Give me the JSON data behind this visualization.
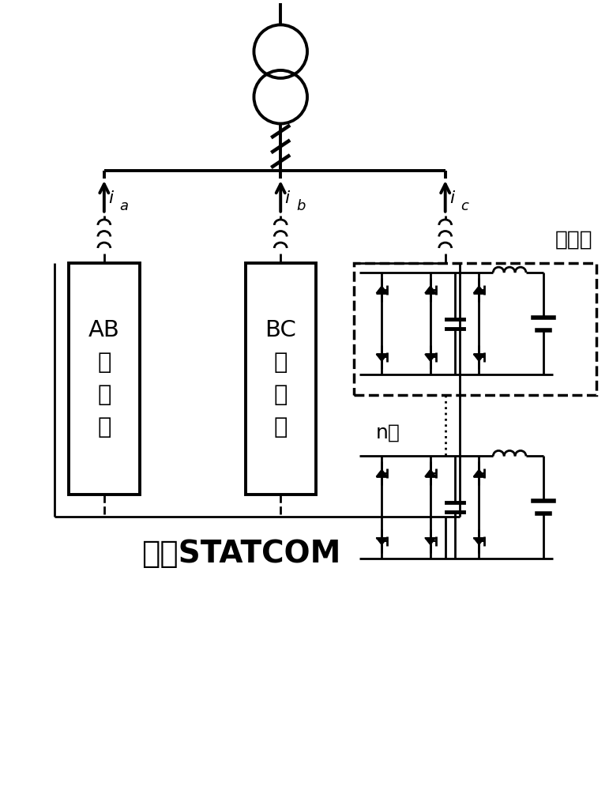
{
  "title": "储能STATCOM",
  "submodule_label": "子模块",
  "n_label": "n个",
  "phase_a_label": "AB\n相\n链\n节",
  "phase_b_label": "BC\n相\n链\n节",
  "bg_color": "#ffffff",
  "lw": 2.0,
  "lw_thick": 2.8
}
